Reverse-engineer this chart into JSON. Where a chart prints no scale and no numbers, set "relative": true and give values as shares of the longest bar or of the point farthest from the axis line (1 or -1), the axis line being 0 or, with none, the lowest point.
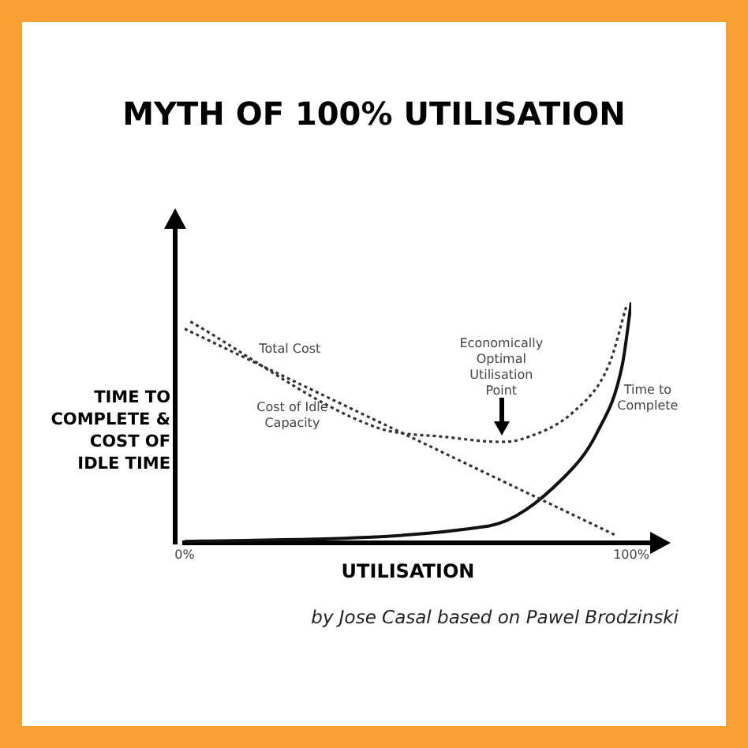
{
  "chart_data": {
    "type": "line",
    "title": "MYTH OF 100% UTILISATION",
    "xlabel": "UTILISATION",
    "ylabel": "TIME TO COMPLETE & COST OF IDLE TIME",
    "relative": true,
    "legend": false,
    "grid": false,
    "marker": "none",
    "xlim": [
      0,
      100
    ],
    "xticks": [
      {
        "value": 0,
        "label": "0%"
      },
      {
        "value": 100,
        "label": "100%"
      }
    ],
    "series": [
      {
        "name": "Total Cost",
        "color": "#333333",
        "line_style": "dotted",
        "x": [
          1.3,
          43,
          58.6,
          70.9,
          75.2,
          87.4,
          95,
          99
        ],
        "values": [
          0.92,
          0.48,
          0.44,
          0.42,
          0.43,
          0.55,
          0.74,
          0.99
        ]
      },
      {
        "name": "Cost of Idle Capacity",
        "color": "#333333",
        "line_style": "dotted",
        "x": [
          0,
          96.7
        ],
        "values": [
          0.89,
          0.03
        ]
      },
      {
        "name": "Time to Complete",
        "color": "#111111",
        "line_style": "solid",
        "x": [
          0,
          68,
          84.8,
          92.4,
          98,
          100
        ],
        "values": [
          0.006,
          0.07,
          0.27,
          0.46,
          0.74,
          1
        ]
      }
    ],
    "annotations": [
      "Economically Optimal Utilisation Point",
      "by Jose Casal based on Pawel Brodzinski"
    ]
  }
}
